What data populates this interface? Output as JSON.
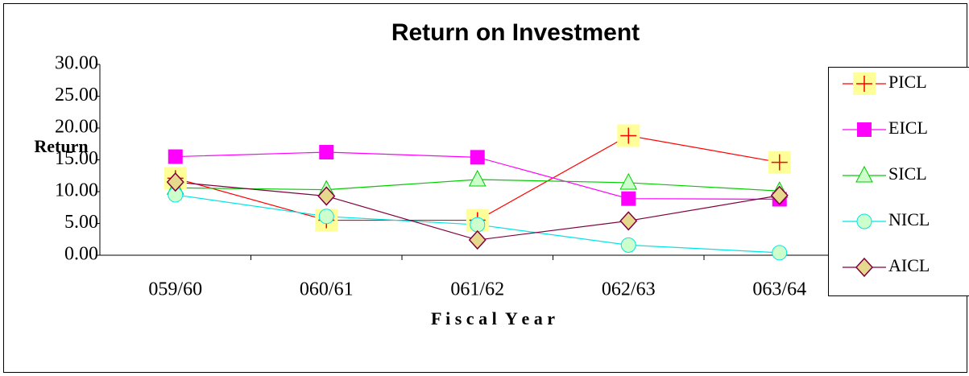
{
  "chart_data": {
    "type": "line",
    "title": "Return on Investment",
    "x_label": "F i s c a l  Y e a r",
    "y_label": "Return",
    "categories": [
      "059/60",
      "060/61",
      "061/62",
      "062/63",
      "063/64"
    ],
    "ylim": [
      0,
      30
    ],
    "yticks": [
      {
        "value": 0,
        "label": "0.00"
      },
      {
        "value": 5,
        "label": "5.00"
      },
      {
        "value": 10,
        "label": "10.00"
      },
      {
        "value": 15,
        "label": "15.00"
      },
      {
        "value": 20,
        "label": "20.00"
      },
      {
        "value": 25,
        "label": "25.00"
      },
      {
        "value": 30,
        "label": "30.00"
      }
    ],
    "legend": "right",
    "series": [
      {
        "name": "PICL",
        "color": "#ff0000",
        "values": [
          12.1,
          5.5,
          5.5,
          18.8,
          14.6
        ]
      },
      {
        "name": "EICL",
        "color": "#ff00ff",
        "values": [
          15.5,
          16.2,
          15.4,
          8.9,
          8.8
        ]
      },
      {
        "name": "SICL",
        "color": "#00cc00",
        "values": [
          10.6,
          10.3,
          11.9,
          11.4,
          10.1
        ]
      },
      {
        "name": "NICL",
        "color": "#00e5e5",
        "values": [
          9.5,
          6.1,
          4.8,
          1.6,
          0.4
        ]
      },
      {
        "name": "AICL",
        "color": "#800040",
        "values": [
          11.5,
          9.3,
          2.4,
          5.4,
          9.4
        ]
      }
    ]
  }
}
